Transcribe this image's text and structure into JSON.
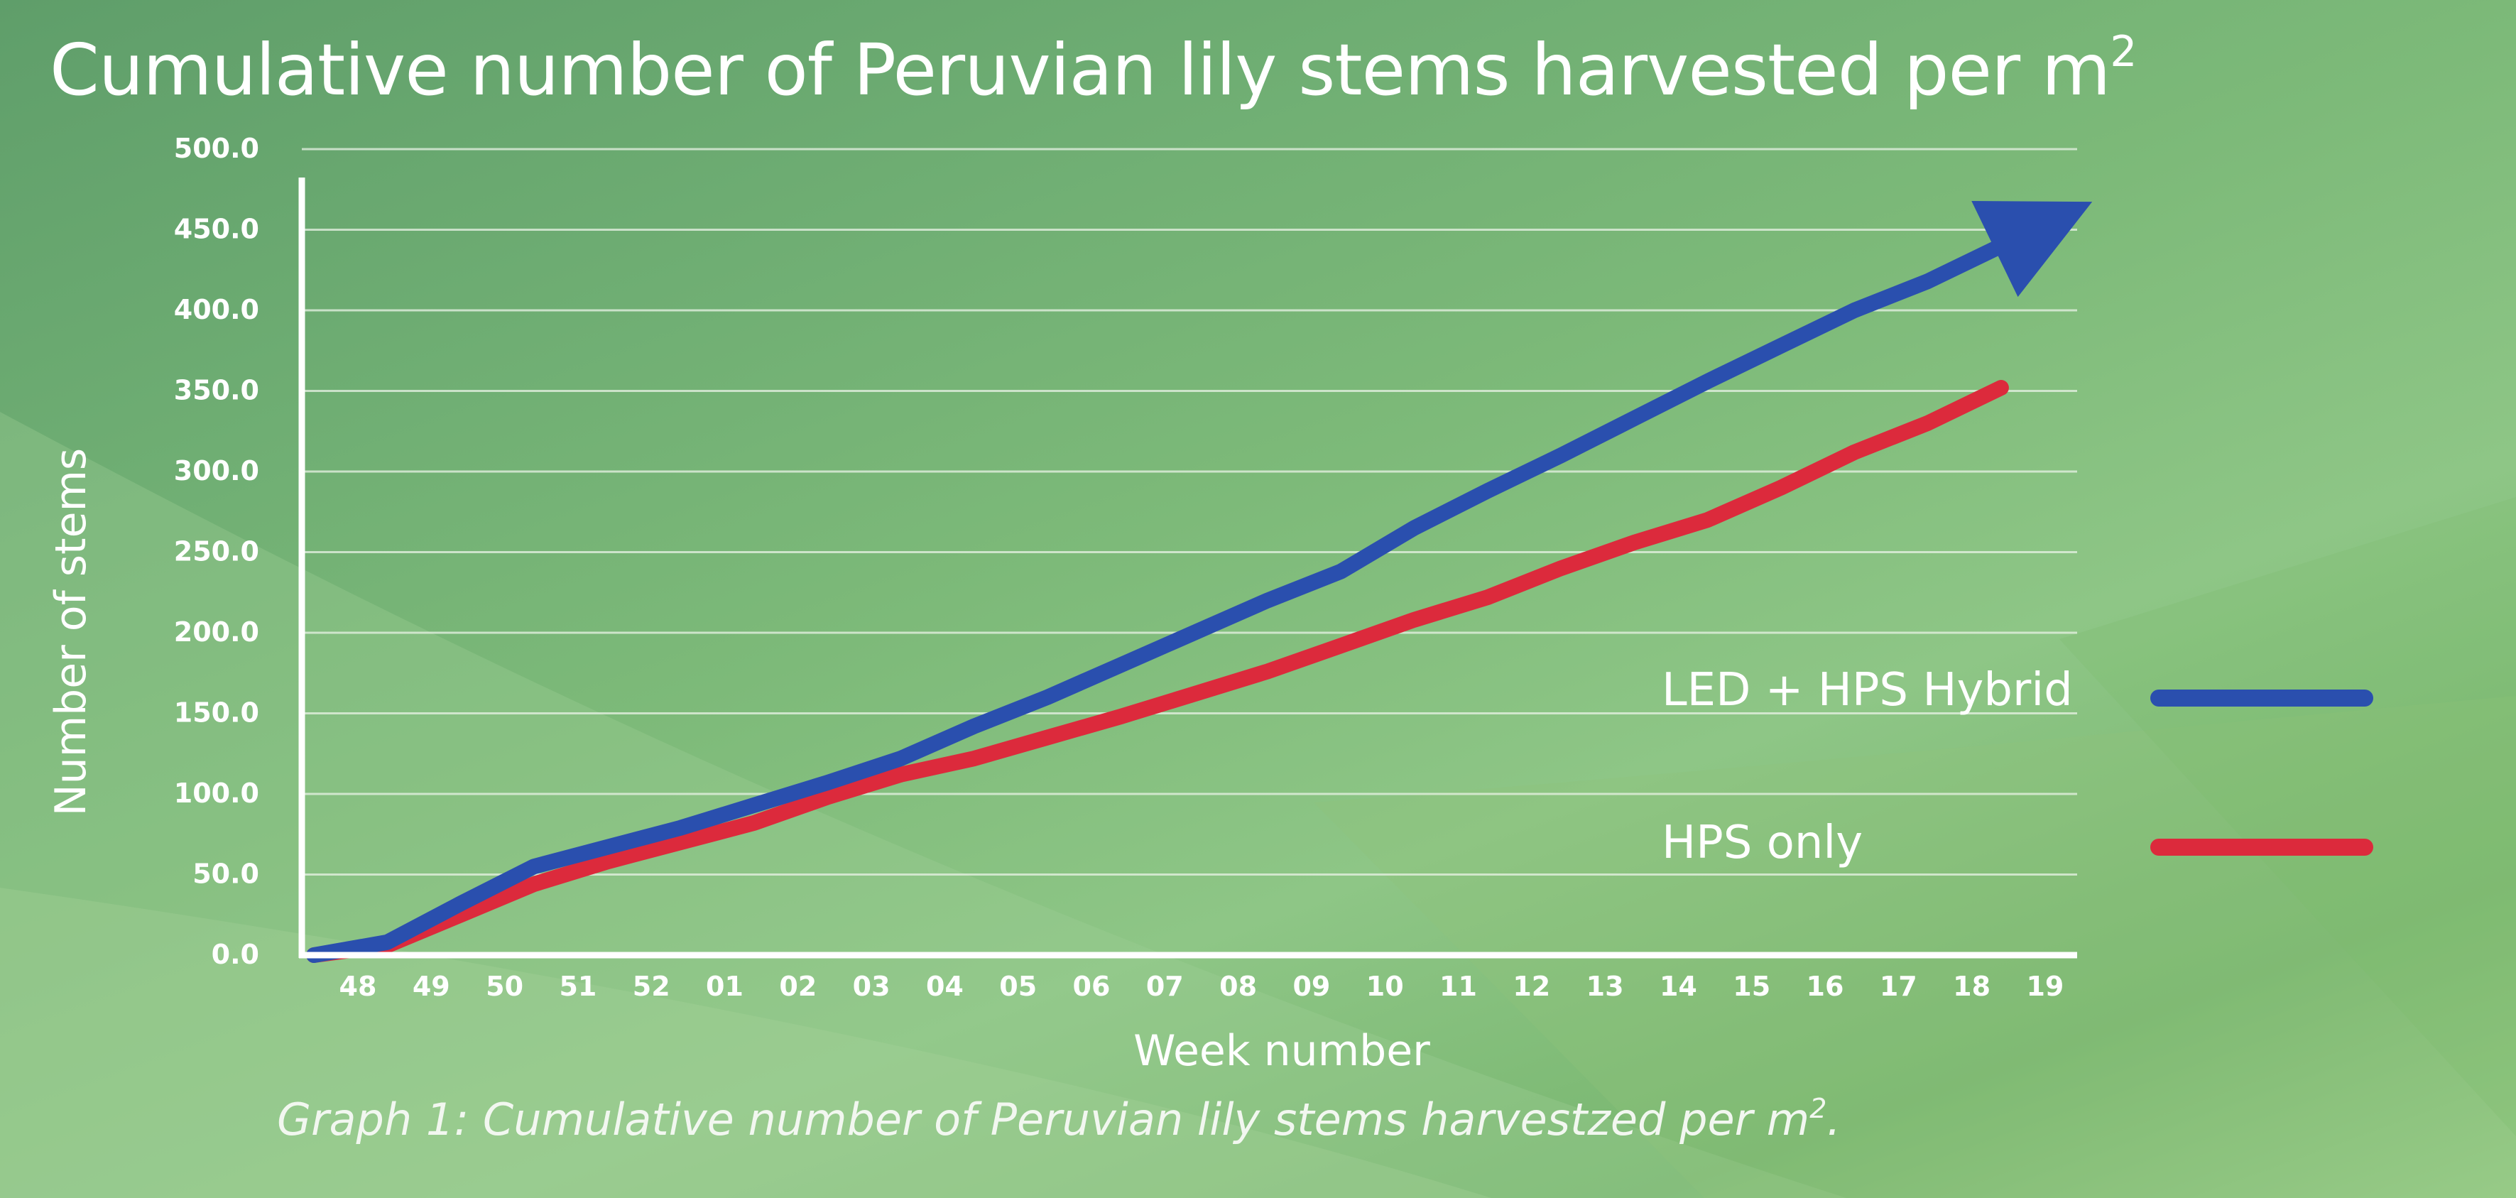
{
  "title": {
    "text": "Cumulative number of Peruvian lily stems harvested per m",
    "superscript": "2"
  },
  "caption": {
    "text": "Graph 1: Cumulative number of Peruvian lily stems harvestzed per m",
    "superscript": "2",
    "suffix": "."
  },
  "chart_data": {
    "type": "line",
    "xlabel": "Week number",
    "ylabel": "Number of stems",
    "ylim": [
      0,
      500
    ],
    "grid": true,
    "legend_placement": "right",
    "y_ticks": [
      "0.0",
      "50.0",
      "100.0",
      "150.0",
      "200.0",
      "250.0",
      "300.0",
      "350.0",
      "400.0",
      "450.0",
      "500.0"
    ],
    "categories": [
      "48",
      "49",
      "50",
      "51",
      "52",
      "01",
      "02",
      "03",
      "04",
      "05",
      "06",
      "07",
      "08",
      "09",
      "10",
      "11",
      "12",
      "13",
      "14",
      "15",
      "16",
      "17",
      "18",
      "19"
    ],
    "series": [
      {
        "name": "LED + HPS Hybrid",
        "color": "#2a4fae",
        "arrow_end": true,
        "values": [
          0,
          8,
          32,
          55,
          67,
          79,
          93,
          107,
          122,
          142,
          160,
          180,
          200,
          220,
          238,
          265,
          288,
          310,
          333,
          356,
          378,
          400,
          418,
          440
        ]
      },
      {
        "name": "HPS only",
        "color": "#dc2a3c",
        "arrow_end": false,
        "values": [
          0,
          6,
          25,
          44,
          58,
          70,
          82,
          98,
          112,
          122,
          135,
          148,
          162,
          176,
          192,
          208,
          222,
          240,
          256,
          270,
          290,
          312,
          330,
          352
        ]
      }
    ]
  }
}
